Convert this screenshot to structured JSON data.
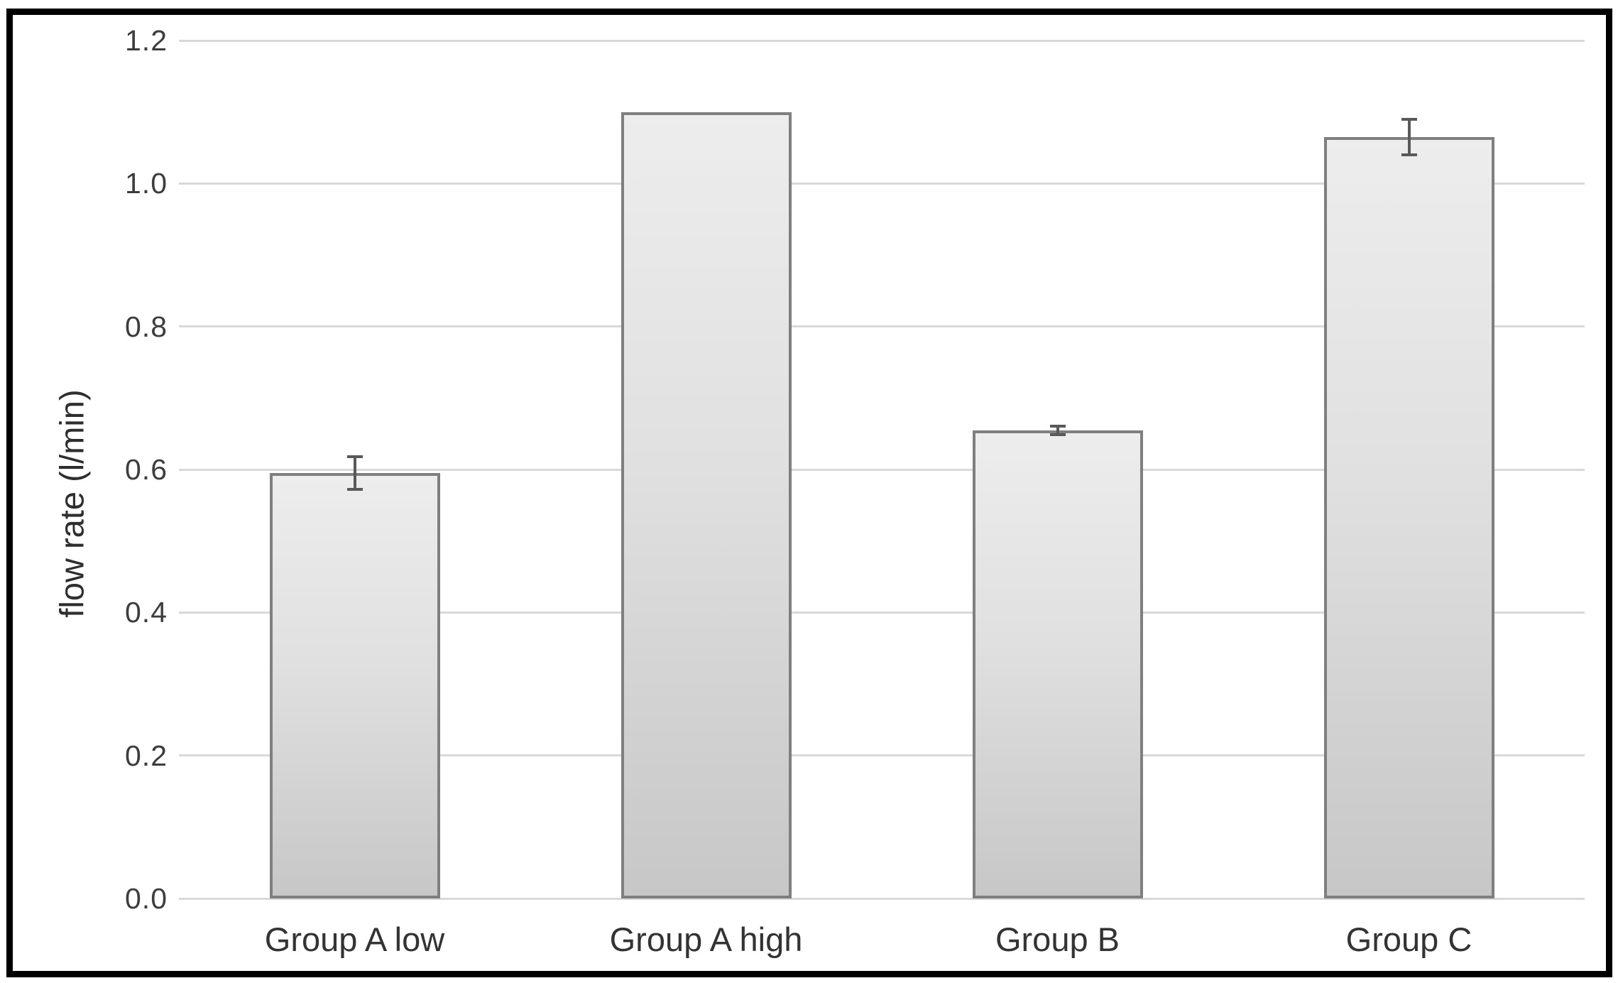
{
  "chart_data": {
    "type": "bar",
    "title": "",
    "categories": [
      "Group A low",
      "Group A high",
      "Group B",
      "Group C"
    ],
    "values": [
      0.595,
      1.1,
      0.655,
      1.065
    ],
    "error_bars": [
      0.025,
      0,
      0.008,
      0.027
    ],
    "xlabel": "",
    "ylabel": "flow rate (l/min)",
    "yticks": [
      0.0,
      0.2,
      0.4,
      0.6,
      0.8,
      1.0,
      1.2
    ],
    "ytick_labels": [
      "0.0",
      "0.2",
      "0.4",
      "0.6",
      "0.8",
      "1.0",
      "1.2"
    ],
    "ylim": [
      0,
      1.2
    ],
    "grid": true,
    "legend": false,
    "colors": {
      "bar_fill_top": "#ededed",
      "bar_fill_bottom": "#c7c7c7",
      "bar_border": "#7f7f7f",
      "gridline": "#d9d9d9",
      "error_bar": "#595959",
      "text": "#3d3d3d",
      "frame_border": "#000000",
      "background": "#ffffff"
    }
  }
}
